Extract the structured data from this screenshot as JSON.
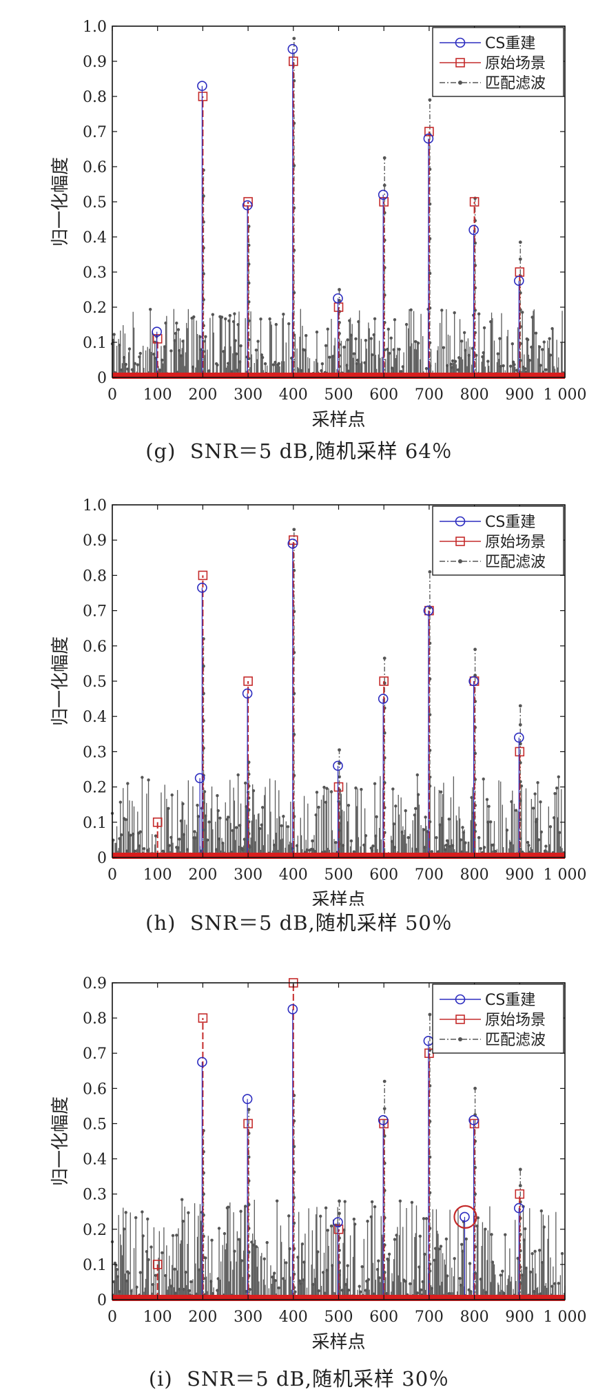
{
  "chart_data": [
    {
      "type": "stem",
      "caption": "(g)  SNR＝5 dB,随机采样 64％",
      "xlabel": "采样点",
      "ylabel": "归一化幅度",
      "xlim": [
        0,
        1000
      ],
      "ylim": [
        0,
        1.0
      ],
      "xticks": [
        "0",
        "100",
        "200",
        "300",
        "400",
        "500",
        "600",
        "700",
        "800",
        "900",
        "1 000"
      ],
      "yticks": [
        "0",
        "0.1",
        "0.2",
        "0.3",
        "0.4",
        "0.5",
        "0.6",
        "0.7",
        "0.8",
        "0.9",
        "1.0"
      ],
      "legend_position": "top-right",
      "legend": [
        "CS重建",
        "原始场景",
        "匹配滤波"
      ],
      "series": [
        {
          "name": "CS重建",
          "marker": "circle",
          "color": "#2b2bbf",
          "points": [
            [
              100,
              0.13
            ],
            [
              200,
              0.83
            ],
            [
              300,
              0.49
            ],
            [
              400,
              0.935
            ],
            [
              500,
              0.225
            ],
            [
              600,
              0.52
            ],
            [
              700,
              0.68
            ],
            [
              800,
              0.42
            ],
            [
              900,
              0.275
            ]
          ]
        },
        {
          "name": "原始场景",
          "marker": "square",
          "color": "#c42a2a",
          "points": [
            [
              100,
              0.11
            ],
            [
              200,
              0.8
            ],
            [
              300,
              0.5
            ],
            [
              400,
              0.9
            ],
            [
              500,
              0.2
            ],
            [
              600,
              0.5
            ],
            [
              700,
              0.7
            ],
            [
              800,
              0.5
            ],
            [
              900,
              0.3
            ]
          ]
        },
        {
          "name": "匹配滤波",
          "marker": "dot",
          "color": "#555555",
          "peaks": [
            [
              200,
              0.59
            ],
            [
              300,
              0.43
            ],
            [
              400,
              0.965
            ],
            [
              500,
              0.25
            ],
            [
              600,
              0.625
            ],
            [
              700,
              0.79
            ],
            [
              800,
              0.51
            ],
            [
              900,
              0.385
            ]
          ],
          "noise_max": 0.19
        }
      ]
    },
    {
      "type": "stem",
      "caption": "(h)  SNR＝5 dB,随机采样 50％",
      "xlabel": "采样点",
      "ylabel": "归一化幅度",
      "xlim": [
        0,
        1000
      ],
      "ylim": [
        0,
        1.0
      ],
      "xticks": [
        "0",
        "100",
        "200",
        "300",
        "400",
        "500",
        "600",
        "700",
        "800",
        "900",
        "1 000"
      ],
      "yticks": [
        "0",
        "0.1",
        "0.2",
        "0.3",
        "0.4",
        "0.5",
        "0.6",
        "0.7",
        "0.8",
        "0.9",
        "1.0"
      ],
      "legend_position": "top-right",
      "legend": [
        "CS重建",
        "原始场景",
        "匹配滤波"
      ],
      "series": [
        {
          "name": "CS重建",
          "marker": "circle",
          "color": "#2b2bbf",
          "points": [
            [
              195,
              0.225
            ],
            [
              200,
              0.765
            ],
            [
              300,
              0.465
            ],
            [
              400,
              0.89
            ],
            [
              500,
              0.26
            ],
            [
              600,
              0.45
            ],
            [
              700,
              0.7
            ],
            [
              800,
              0.5
            ],
            [
              900,
              0.34
            ]
          ]
        },
        {
          "name": "原始场景",
          "marker": "square",
          "color": "#c42a2a",
          "points": [
            [
              100,
              0.1
            ],
            [
              200,
              0.8
            ],
            [
              300,
              0.5
            ],
            [
              400,
              0.9
            ],
            [
              500,
              0.2
            ],
            [
              600,
              0.5
            ],
            [
              700,
              0.7
            ],
            [
              800,
              0.5
            ],
            [
              900,
              0.3
            ]
          ]
        },
        {
          "name": "匹配滤波",
          "marker": "dot",
          "color": "#555555",
          "peaks": [
            [
              200,
              0.62
            ],
            [
              300,
              0.27
            ],
            [
              400,
              0.93
            ],
            [
              500,
              0.305
            ],
            [
              600,
              0.565
            ],
            [
              700,
              0.81
            ],
            [
              800,
              0.59
            ],
            [
              900,
              0.43
            ]
          ],
          "noise_max": 0.23
        }
      ]
    },
    {
      "type": "stem",
      "caption": "(i)  SNR＝5 dB,随机采样 30％",
      "xlabel": "采样点",
      "ylabel": "归一化幅度",
      "xlim": [
        0,
        1000
      ],
      "ylim": [
        0,
        0.9
      ],
      "xticks": [
        "0",
        "100",
        "200",
        "300",
        "400",
        "500",
        "600",
        "700",
        "800",
        "900",
        "1 000"
      ],
      "yticks": [
        "0",
        "0.1",
        "0.2",
        "0.3",
        "0.4",
        "0.5",
        "0.6",
        "0.7",
        "0.8",
        "0.9"
      ],
      "legend_position": "top-right",
      "legend": [
        "CS重建",
        "原始场景",
        "匹配滤波"
      ],
      "highlight_circle": [
        780,
        0.235
      ],
      "series": [
        {
          "name": "CS重建",
          "marker": "circle",
          "color": "#2b2bbf",
          "points": [
            [
              200,
              0.675
            ],
            [
              300,
              0.57
            ],
            [
              400,
              0.825
            ],
            [
              500,
              0.22
            ],
            [
              600,
              0.51
            ],
            [
              700,
              0.735
            ],
            [
              780,
              0.235
            ],
            [
              800,
              0.51
            ],
            [
              900,
              0.26
            ]
          ]
        },
        {
          "name": "原始场景",
          "marker": "square",
          "color": "#c42a2a",
          "points": [
            [
              100,
              0.1
            ],
            [
              200,
              0.8
            ],
            [
              300,
              0.5
            ],
            [
              400,
              0.9
            ],
            [
              500,
              0.2
            ],
            [
              600,
              0.5
            ],
            [
              700,
              0.7
            ],
            [
              800,
              0.5
            ],
            [
              900,
              0.3
            ]
          ]
        },
        {
          "name": "匹配滤波",
          "marker": "dot",
          "color": "#555555",
          "peaks": [
            [
              200,
              0.48
            ],
            [
              300,
              0.54
            ],
            [
              400,
              0.58
            ],
            [
              500,
              0.28
            ],
            [
              600,
              0.62
            ],
            [
              700,
              0.81
            ],
            [
              800,
              0.6
            ],
            [
              900,
              0.37
            ]
          ],
          "noise_max": 0.28
        }
      ]
    }
  ]
}
